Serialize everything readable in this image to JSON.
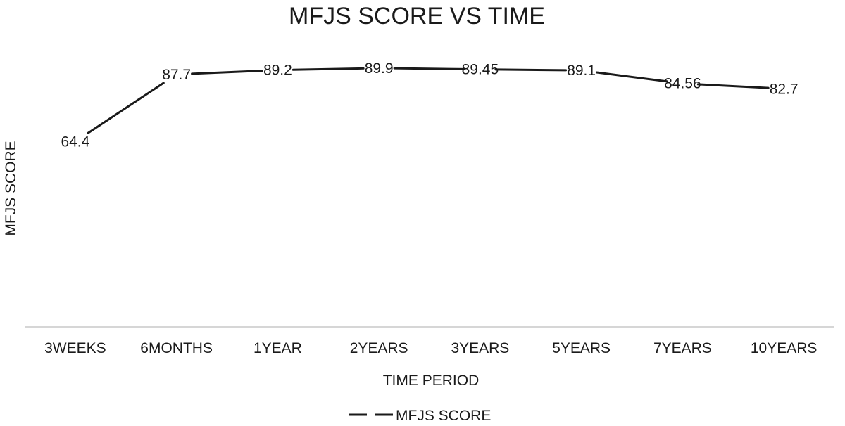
{
  "chart_data": {
    "type": "line",
    "title": "MFJS SCORE VS TIME",
    "xlabel": "TIME PERIOD",
    "ylabel": "MFJS SCORE",
    "categories": [
      "3WEEKS",
      "6MONTHS",
      "1YEAR",
      "2YEARS",
      "3YEARS",
      "5YEARS",
      "7YEARS",
      "10YEARS"
    ],
    "series": [
      {
        "name": "MFJS SCORE",
        "values": [
          64.4,
          87.7,
          89.2,
          89.9,
          89.45,
          89.1,
          84.56,
          82.7
        ],
        "labels": [
          "64.4",
          "87.7",
          "89.2",
          "89.9",
          "89.45",
          "89.1",
          "84.56",
          "82.7"
        ],
        "color": "#1a1a1a"
      }
    ],
    "ylim": [
      0,
      100
    ],
    "grid": false,
    "legend": "bottom",
    "axis_color": "#c8c8c8"
  }
}
